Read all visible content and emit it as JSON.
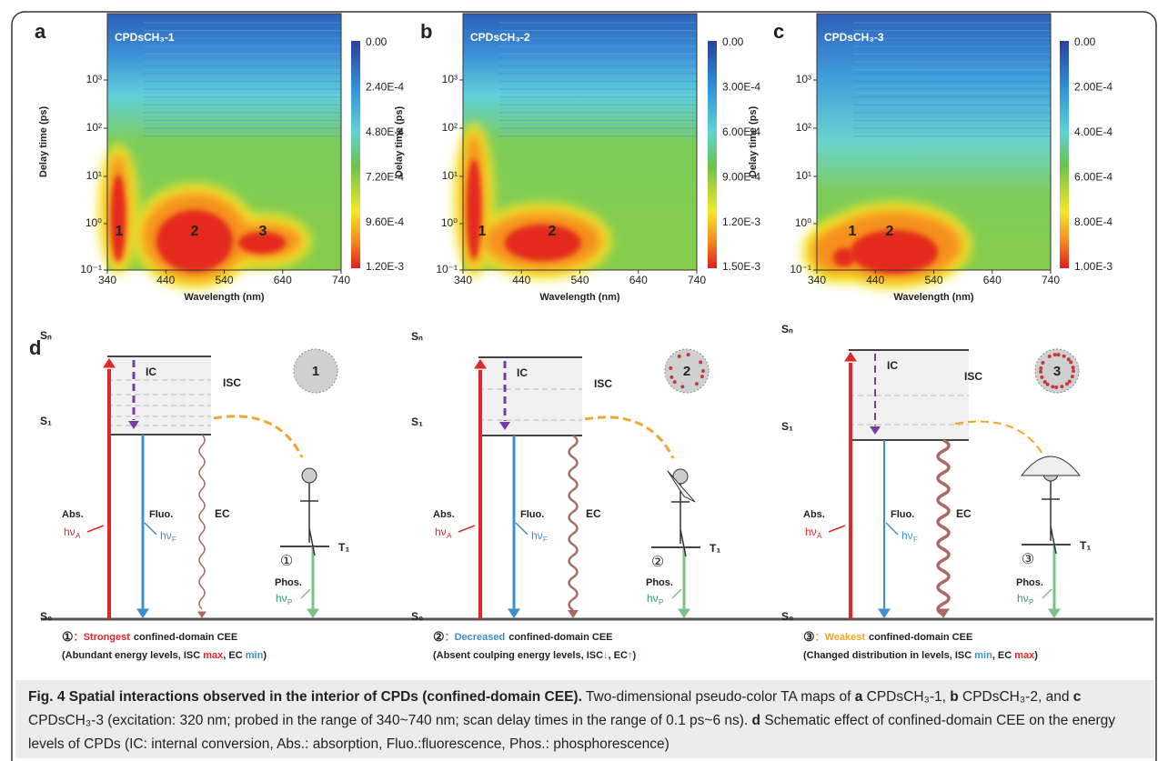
{
  "axes": {
    "x_label": "Wavelength (nm)",
    "y_label": "Delay time (ps)",
    "x_ticks": [
      "340",
      "440",
      "540",
      "640",
      "740"
    ],
    "y_ticks": [
      "10⁻¹",
      "10⁰",
      "10¹",
      "10²",
      "10³"
    ]
  },
  "panels": [
    {
      "letter": "a",
      "sample": "CPDsCH₃-1",
      "colorbar": [
        "0.00",
        "2.40E-4",
        "4.80E-4",
        "7.20E-4",
        "9.60E-4",
        "1.20E-3"
      ],
      "peaks": [
        "1",
        "2",
        "3"
      ]
    },
    {
      "letter": "b",
      "sample": "CPDsCH₃-2",
      "colorbar": [
        "0.00",
        "3.00E-4",
        "6.00E-4",
        "9.00E-4",
        "1.20E-3",
        "1.50E-3"
      ],
      "peaks": [
        "1",
        "2"
      ]
    },
    {
      "letter": "c",
      "sample": "CPDsCH₃-3",
      "colorbar": [
        "0.00",
        "2.00E-4",
        "4.00E-4",
        "6.00E-4",
        "8.00E-4",
        "1.00E-3"
      ],
      "peaks": [
        "1",
        "2"
      ]
    }
  ],
  "diagram": {
    "letter": "d",
    "levels": {
      "sn": "Sₙ",
      "s1": "S₁",
      "t1": "T₁",
      "s0": "S₀"
    },
    "labels": {
      "ic": "IC",
      "isc": "ISC",
      "abs": "Abs.",
      "fluo": "Fluo.",
      "ec": "EC",
      "phos": "Phos.",
      "h_nu": "hν",
      "sub_a": "A",
      "sub_f": "F",
      "sub_p": "P"
    },
    "schemes": [
      {
        "circle": "①",
        "particle": "1",
        "separator": "：",
        "emphasis": "Strongest",
        "rest": "confined-domain CEE",
        "detail": [
          "(Abundant energy levels, ISC ",
          "max",
          ", EC ",
          "min",
          ")"
        ]
      },
      {
        "circle": "②",
        "particle": "2",
        "separator": "：",
        "emphasis": "Decreased",
        "rest": "confined-domain CEE",
        "detail": [
          "(Absent coulping energy levels, ISC",
          "↓",
          ", EC",
          "↑",
          ")"
        ]
      },
      {
        "circle": "③",
        "particle": "3",
        "separator": "：",
        "emphasis": "Weakest",
        "rest": "confined-domain CEE",
        "detail": [
          "(Changed distribution in levels, ISC ",
          "min",
          ", EC ",
          "max",
          ")"
        ]
      }
    ]
  },
  "caption": {
    "title": "Fig. 4 Spatial interactions observed in the interior of CPDs (confined-domain CEE).",
    "runs": [
      " Two-dimensional pseudo-color TA maps of ",
      "a",
      " CPDsCH₃-1, ",
      "b",
      " CPDsCH₃-2, and ",
      "c",
      " CPDsCH₃-3 (excitation: 320 nm; probed in the range of 340~740 nm; scan delay times in the range of 0.1 ps~6 ns). ",
      "d",
      " Schematic effect of confined-domain CEE on the energy levels of CPDs (IC: internal conversion, Abs.: absorption, Fluo.:fluorescence, Phos.: phosphorescence)"
    ]
  }
}
